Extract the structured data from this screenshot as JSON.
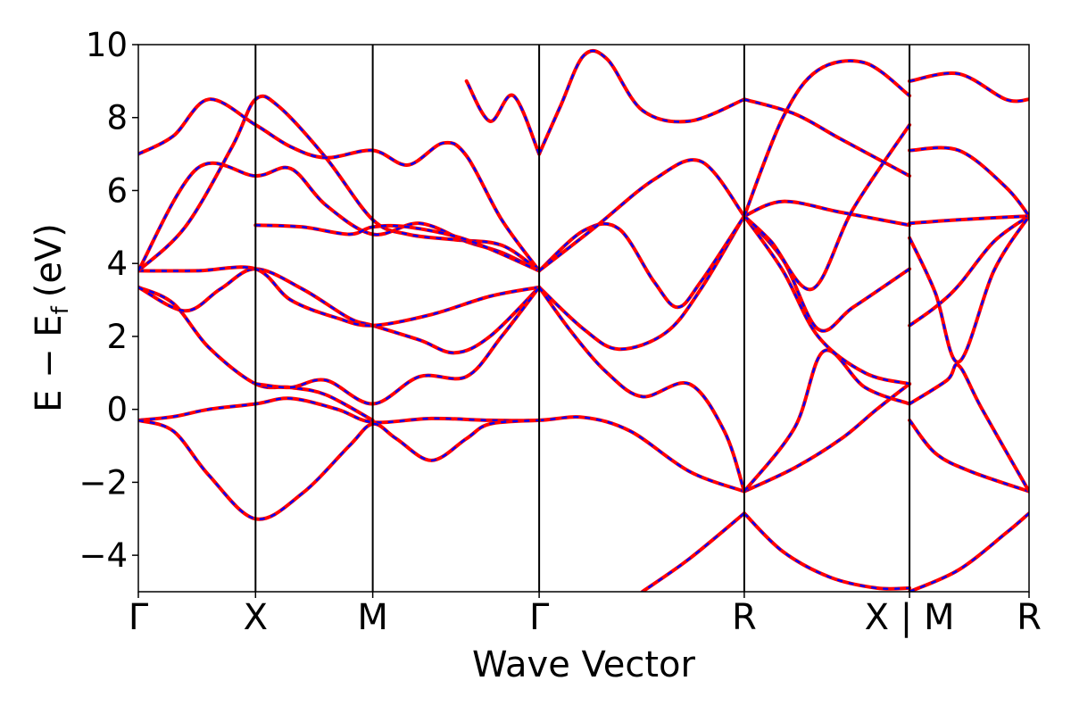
{
  "chart_data": {
    "type": "line",
    "xlabel": "Wave Vector",
    "ylabel_main": "E − E",
    "ylabel_sub": "f",
    "ylabel_unit": "(eV)",
    "ylim": [
      -5,
      10
    ],
    "yticks": [
      -4,
      -2,
      0,
      2,
      4,
      6,
      8,
      10
    ],
    "ytick_labels": [
      "−4",
      "−2",
      "0",
      "2",
      "4",
      "6",
      "8",
      "10"
    ],
    "xlim": [
      0,
      7.6
    ],
    "symmetry_points": [
      {
        "label": "Γ",
        "x": 0.0
      },
      {
        "label": "X",
        "x": 1.0
      },
      {
        "label": "M",
        "x": 2.0
      },
      {
        "label": "Γ",
        "x": 3.42
      },
      {
        "label": "R",
        "x": 5.17
      },
      {
        "label": "X | M",
        "x": 6.58
      },
      {
        "label": "R",
        "x": 7.6
      }
    ],
    "series_styles": {
      "primary_color": "#ff0000",
      "overlay_color": "#0000ff",
      "overlay_dash": "dashed"
    },
    "bands": [
      [
        [
          0,
          -0.3
        ],
        [
          0.3,
          -0.2
        ],
        [
          0.6,
          0.0
        ],
        [
          1.0,
          0.15
        ],
        [
          1.3,
          0.3
        ],
        [
          1.7,
          0.0
        ],
        [
          2.0,
          -0.35
        ],
        [
          2.5,
          -0.25
        ],
        [
          3.0,
          -0.3
        ],
        [
          3.42,
          -0.3
        ],
        [
          3.8,
          -0.22
        ],
        [
          4.2,
          -0.6
        ],
        [
          4.7,
          -1.7
        ],
        [
          5.17,
          -2.25
        ]
      ],
      [
        [
          0,
          -0.3
        ],
        [
          0.3,
          -0.6
        ],
        [
          0.6,
          -1.8
        ],
        [
          1.0,
          -3.0
        ],
        [
          1.4,
          -2.3
        ],
        [
          1.8,
          -1.0
        ],
        [
          2.0,
          -0.4
        ],
        [
          2.2,
          -0.8
        ],
        [
          2.5,
          -1.4
        ],
        [
          2.8,
          -0.8
        ],
        [
          3.0,
          -0.4
        ],
        [
          3.42,
          -0.3
        ]
      ],
      [
        [
          0,
          3.35
        ],
        [
          0.3,
          2.9
        ],
        [
          0.6,
          1.7
        ],
        [
          1.0,
          0.7
        ],
        [
          1.3,
          0.6
        ],
        [
          1.6,
          0.4
        ],
        [
          2.0,
          -0.3
        ]
      ],
      [
        [
          0,
          3.35
        ],
        [
          0.4,
          2.7
        ],
        [
          0.7,
          3.3
        ],
        [
          1.0,
          3.85
        ],
        [
          1.4,
          3.3
        ],
        [
          1.8,
          2.5
        ],
        [
          2.0,
          2.3
        ],
        [
          2.4,
          1.9
        ],
        [
          2.7,
          1.55
        ],
        [
          3.0,
          2.0
        ],
        [
          3.42,
          3.35
        ]
      ],
      [
        [
          0,
          3.8
        ],
        [
          0.5,
          3.8
        ],
        [
          1.0,
          3.85
        ],
        [
          1.3,
          3.0
        ],
        [
          1.7,
          2.5
        ],
        [
          2.0,
          2.3
        ],
        [
          2.5,
          2.6
        ],
        [
          3.0,
          3.1
        ],
        [
          3.42,
          3.35
        ]
      ],
      [
        [
          0,
          3.8
        ],
        [
          0.4,
          5.0
        ],
        [
          0.8,
          7.2
        ],
        [
          1.0,
          8.5
        ],
        [
          1.2,
          8.3
        ],
        [
          1.6,
          6.9
        ],
        [
          2.0,
          5.2
        ],
        [
          2.3,
          4.8
        ],
        [
          2.7,
          4.65
        ],
        [
          3.1,
          4.5
        ],
        [
          3.42,
          3.8
        ]
      ],
      [
        [
          0,
          7.0
        ],
        [
          0.3,
          7.5
        ],
        [
          0.6,
          8.5
        ],
        [
          1.0,
          7.8
        ],
        [
          1.3,
          7.2
        ],
        [
          1.6,
          6.9
        ],
        [
          2.0,
          7.1
        ],
        [
          2.3,
          6.7
        ],
        [
          2.6,
          7.3
        ],
        [
          2.8,
          6.95
        ],
        [
          3.1,
          5.2
        ],
        [
          3.42,
          3.8
        ]
      ],
      [
        [
          0,
          3.8
        ],
        [
          0.5,
          6.6
        ],
        [
          1.0,
          6.4
        ],
        [
          1.3,
          6.6
        ],
        [
          1.6,
          5.6
        ],
        [
          2.0,
          4.8
        ],
        [
          2.4,
          5.1
        ],
        [
          2.8,
          4.6
        ],
        [
          3.1,
          4.3
        ],
        [
          3.42,
          3.8
        ]
      ],
      [
        [
          1.0,
          0.7
        ],
        [
          1.3,
          0.6
        ],
        [
          1.6,
          0.8
        ],
        [
          2.0,
          0.15
        ],
        [
          2.4,
          0.9
        ],
        [
          2.8,
          0.9
        ],
        [
          3.1,
          2.0
        ],
        [
          3.42,
          3.35
        ]
      ],
      [
        [
          1.0,
          5.05
        ],
        [
          1.4,
          5.0
        ],
        [
          1.8,
          4.8
        ],
        [
          2.0,
          5.0
        ],
        [
          2.3,
          5.0
        ],
        [
          2.8,
          4.65
        ],
        [
          3.42,
          3.8
        ]
      ],
      [
        [
          3.42,
          3.35
        ],
        [
          3.8,
          2.2
        ],
        [
          4.1,
          1.65
        ],
        [
          4.5,
          2.1
        ],
        [
          4.8,
          3.3
        ],
        [
          5.17,
          5.3
        ]
      ],
      [
        [
          3.42,
          3.35
        ],
        [
          3.7,
          2.1
        ],
        [
          4.0,
          1.0
        ],
        [
          4.3,
          0.35
        ],
        [
          4.7,
          0.7
        ],
        [
          5.0,
          -0.6
        ],
        [
          5.17,
          -2.25
        ]
      ],
      [
        [
          3.42,
          3.8
        ],
        [
          3.8,
          4.9
        ],
        [
          4.1,
          4.95
        ],
        [
          4.4,
          3.5
        ],
        [
          4.6,
          2.8
        ],
        [
          4.8,
          3.5
        ],
        [
          5.17,
          5.3
        ]
      ],
      [
        [
          3.42,
          3.8
        ],
        [
          3.9,
          5.0
        ],
        [
          4.4,
          6.3
        ],
        [
          4.8,
          6.8
        ],
        [
          5.17,
          5.3
        ]
      ],
      [
        [
          3.42,
          7.0
        ],
        [
          3.6,
          8.3
        ],
        [
          3.8,
          9.7
        ],
        [
          4.0,
          9.6
        ],
        [
          4.3,
          8.2
        ],
        [
          4.7,
          7.9
        ],
        [
          5.17,
          8.5
        ]
      ],
      [
        [
          3.42,
          7.0
        ],
        [
          3.2,
          8.6
        ],
        [
          3.0,
          7.9
        ],
        [
          2.8,
          9.0
        ]
      ],
      [
        [
          5.17,
          -2.25
        ],
        [
          5.6,
          -1.6
        ],
        [
          6.0,
          -0.8
        ],
        [
          6.3,
          0.0
        ],
        [
          6.58,
          0.7
        ]
      ],
      [
        [
          5.17,
          -2.25
        ],
        [
          5.6,
          -0.5
        ],
        [
          5.85,
          1.6
        ],
        [
          6.2,
          0.6
        ],
        [
          6.58,
          0.15
        ]
      ],
      [
        [
          5.17,
          5.3
        ],
        [
          5.5,
          3.8
        ],
        [
          5.8,
          2.0
        ],
        [
          6.2,
          1.0
        ],
        [
          6.58,
          0.7
        ]
      ],
      [
        [
          5.17,
          5.3
        ],
        [
          5.5,
          4.1
        ],
        [
          5.8,
          2.2
        ],
        [
          6.1,
          2.8
        ],
        [
          6.58,
          3.85
        ]
      ],
      [
        [
          5.17,
          5.3
        ],
        [
          5.5,
          5.7
        ],
        [
          6.0,
          5.4
        ],
        [
          6.58,
          5.05
        ]
      ],
      [
        [
          5.17,
          5.3
        ],
        [
          5.4,
          4.6
        ],
        [
          5.75,
          3.3
        ],
        [
          6.1,
          5.5
        ],
        [
          6.58,
          7.8
        ]
      ],
      [
        [
          5.17,
          5.3
        ],
        [
          5.5,
          8.0
        ],
        [
          5.8,
          9.3
        ],
        [
          6.2,
          9.5
        ],
        [
          6.58,
          8.6
        ]
      ],
      [
        [
          5.17,
          8.5
        ],
        [
          5.6,
          8.1
        ],
        [
          6.0,
          7.4
        ],
        [
          6.58,
          6.4
        ]
      ],
      [
        [
          5.17,
          -2.85
        ],
        [
          5.5,
          -3.9
        ],
        [
          5.9,
          -4.6
        ],
        [
          6.3,
          -4.9
        ],
        [
          6.58,
          -4.9
        ]
      ],
      [
        [
          5.17,
          -2.85
        ],
        [
          4.7,
          -4.1
        ],
        [
          4.3,
          -5.0
        ]
      ],
      [
        [
          6.58,
          -0.3
        ],
        [
          6.8,
          -1.2
        ],
        [
          7.1,
          -1.7
        ],
        [
          7.6,
          -2.25
        ]
      ],
      [
        [
          6.58,
          0.15
        ],
        [
          6.9,
          0.8
        ],
        [
          7.0,
          1.2
        ],
        [
          7.2,
          0.0
        ],
        [
          7.6,
          -2.25
        ]
      ],
      [
        [
          6.58,
          2.3
        ],
        [
          6.8,
          2.8
        ],
        [
          7.0,
          3.4
        ],
        [
          7.3,
          4.6
        ],
        [
          7.6,
          5.3
        ]
      ],
      [
        [
          6.58,
          4.7
        ],
        [
          6.8,
          3.2
        ],
        [
          7.0,
          1.3
        ],
        [
          7.3,
          3.8
        ],
        [
          7.6,
          5.3
        ]
      ],
      [
        [
          6.58,
          5.1
        ],
        [
          7.0,
          5.2
        ],
        [
          7.6,
          5.3
        ]
      ],
      [
        [
          6.58,
          7.1
        ],
        [
          7.0,
          7.1
        ],
        [
          7.4,
          6.1
        ],
        [
          7.6,
          5.3
        ]
      ],
      [
        [
          6.58,
          9.0
        ],
        [
          7.0,
          9.2
        ],
        [
          7.4,
          8.5
        ],
        [
          7.6,
          8.5
        ]
      ],
      [
        [
          6.58,
          -5.0
        ],
        [
          7.0,
          -4.4
        ],
        [
          7.4,
          -3.4
        ],
        [
          7.6,
          -2.85
        ]
      ]
    ]
  }
}
